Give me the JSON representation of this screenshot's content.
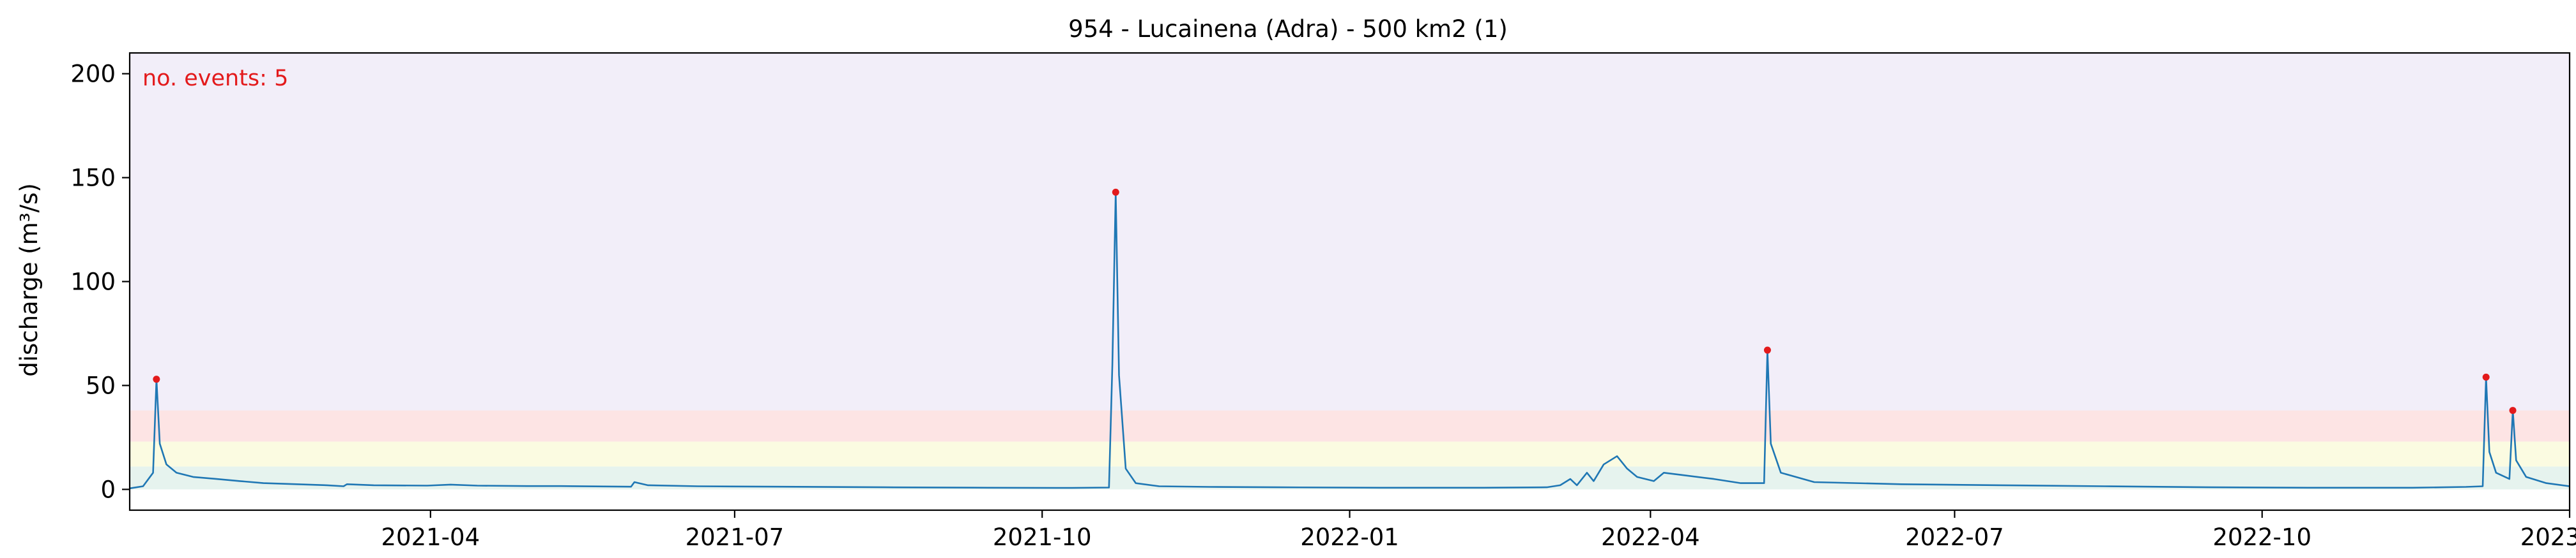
{
  "chart_data": {
    "type": "line",
    "title": "954 - Lucainena (Adra) - 500 km2 (1)",
    "xlabel": "",
    "ylabel": "discharge (m³/s)",
    "annotation": "no. events: 5",
    "ylim": [
      -10,
      210
    ],
    "xlim": [
      "2021-01-01",
      "2023-01-01"
    ],
    "grid": false,
    "x_ticks": [
      "2021-04",
      "2021-07",
      "2021-10",
      "2022-01",
      "2022-04",
      "2022-07",
      "2022-10",
      "2023-01"
    ],
    "y_ticks": [
      0,
      50,
      100,
      150,
      200
    ],
    "bands": [
      {
        "from": 0,
        "to": 11,
        "color": "#e6f3ee"
      },
      {
        "from": 11,
        "to": 23,
        "color": "#fbfbe1"
      },
      {
        "from": 23,
        "to": 38,
        "color": "#fde4e4"
      },
      {
        "from": 38,
        "to": 210,
        "color": "#f2eef9"
      }
    ],
    "series": [
      {
        "color": "#1f77b4",
        "points": [
          [
            "2021-01-01",
            0.5
          ],
          [
            "2021-01-05",
            1.5
          ],
          [
            "2021-01-08",
            8
          ],
          [
            "2021-01-09",
            53
          ],
          [
            "2021-01-10",
            22
          ],
          [
            "2021-01-12",
            12
          ],
          [
            "2021-01-15",
            8
          ],
          [
            "2021-01-20",
            6
          ],
          [
            "2021-01-27",
            5
          ],
          [
            "2021-02-03",
            4
          ],
          [
            "2021-02-10",
            3
          ],
          [
            "2021-02-20",
            2.5
          ],
          [
            "2021-03-01",
            2
          ],
          [
            "2021-03-06",
            1.5
          ],
          [
            "2021-03-07",
            2.5
          ],
          [
            "2021-03-15",
            2
          ],
          [
            "2021-03-31",
            1.8
          ],
          [
            "2021-04-07",
            2.3
          ],
          [
            "2021-04-15",
            1.8
          ],
          [
            "2021-04-30",
            1.6
          ],
          [
            "2021-05-10",
            1.6
          ],
          [
            "2021-05-31",
            1.3
          ],
          [
            "2021-06-01",
            3.5
          ],
          [
            "2021-06-05",
            2
          ],
          [
            "2021-06-20",
            1.5
          ],
          [
            "2021-07-15",
            1.3
          ],
          [
            "2021-08-15",
            1.0
          ],
          [
            "2021-09-15",
            0.8
          ],
          [
            "2021-10-10",
            0.7
          ],
          [
            "2021-10-21",
            0.9
          ],
          [
            "2021-10-22",
            60
          ],
          [
            "2021-10-23",
            143
          ],
          [
            "2021-10-24",
            55
          ],
          [
            "2021-10-26",
            10
          ],
          [
            "2021-10-29",
            3
          ],
          [
            "2021-11-05",
            1.5
          ],
          [
            "2021-11-20",
            1.2
          ],
          [
            "2021-12-10",
            1.0
          ],
          [
            "2022-01-10",
            0.8
          ],
          [
            "2022-02-10",
            0.8
          ],
          [
            "2022-03-01",
            1.0
          ],
          [
            "2022-03-05",
            2.0
          ],
          [
            "2022-03-08",
            5
          ],
          [
            "2022-03-10",
            2
          ],
          [
            "2022-03-13",
            8
          ],
          [
            "2022-03-15",
            4
          ],
          [
            "2022-03-18",
            12
          ],
          [
            "2022-03-22",
            16
          ],
          [
            "2022-03-25",
            10
          ],
          [
            "2022-03-28",
            6
          ],
          [
            "2022-04-02",
            4
          ],
          [
            "2022-04-05",
            8
          ],
          [
            "2022-04-10",
            7
          ],
          [
            "2022-04-20",
            5
          ],
          [
            "2022-04-28",
            3
          ],
          [
            "2022-05-05",
            3
          ],
          [
            "2022-05-06",
            67
          ],
          [
            "2022-05-07",
            22
          ],
          [
            "2022-05-10",
            8
          ],
          [
            "2022-05-20",
            3.5
          ],
          [
            "2022-06-15",
            2.5
          ],
          [
            "2022-07-15",
            2.0
          ],
          [
            "2022-08-15",
            1.5
          ],
          [
            "2022-09-15",
            1.0
          ],
          [
            "2022-10-15",
            0.8
          ],
          [
            "2022-11-15",
            0.8
          ],
          [
            "2022-12-01",
            1.2
          ],
          [
            "2022-12-06",
            1.5
          ],
          [
            "2022-12-07",
            54
          ],
          [
            "2022-12-08",
            18
          ],
          [
            "2022-12-10",
            8
          ],
          [
            "2022-12-14",
            5
          ],
          [
            "2022-12-15",
            38
          ],
          [
            "2022-12-16",
            14
          ],
          [
            "2022-12-19",
            6
          ],
          [
            "2022-12-25",
            3
          ],
          [
            "2023-01-01",
            1.5
          ]
        ]
      }
    ],
    "events": [
      {
        "x": "2021-01-09",
        "y": 53
      },
      {
        "x": "2021-10-23",
        "y": 143
      },
      {
        "x": "2022-05-06",
        "y": 67
      },
      {
        "x": "2022-12-07",
        "y": 54
      },
      {
        "x": "2022-12-15",
        "y": 38
      }
    ],
    "colors": {
      "line": "#1f77b4",
      "event_marker": "#e31a1c",
      "annotation": "#e31a1c"
    }
  }
}
